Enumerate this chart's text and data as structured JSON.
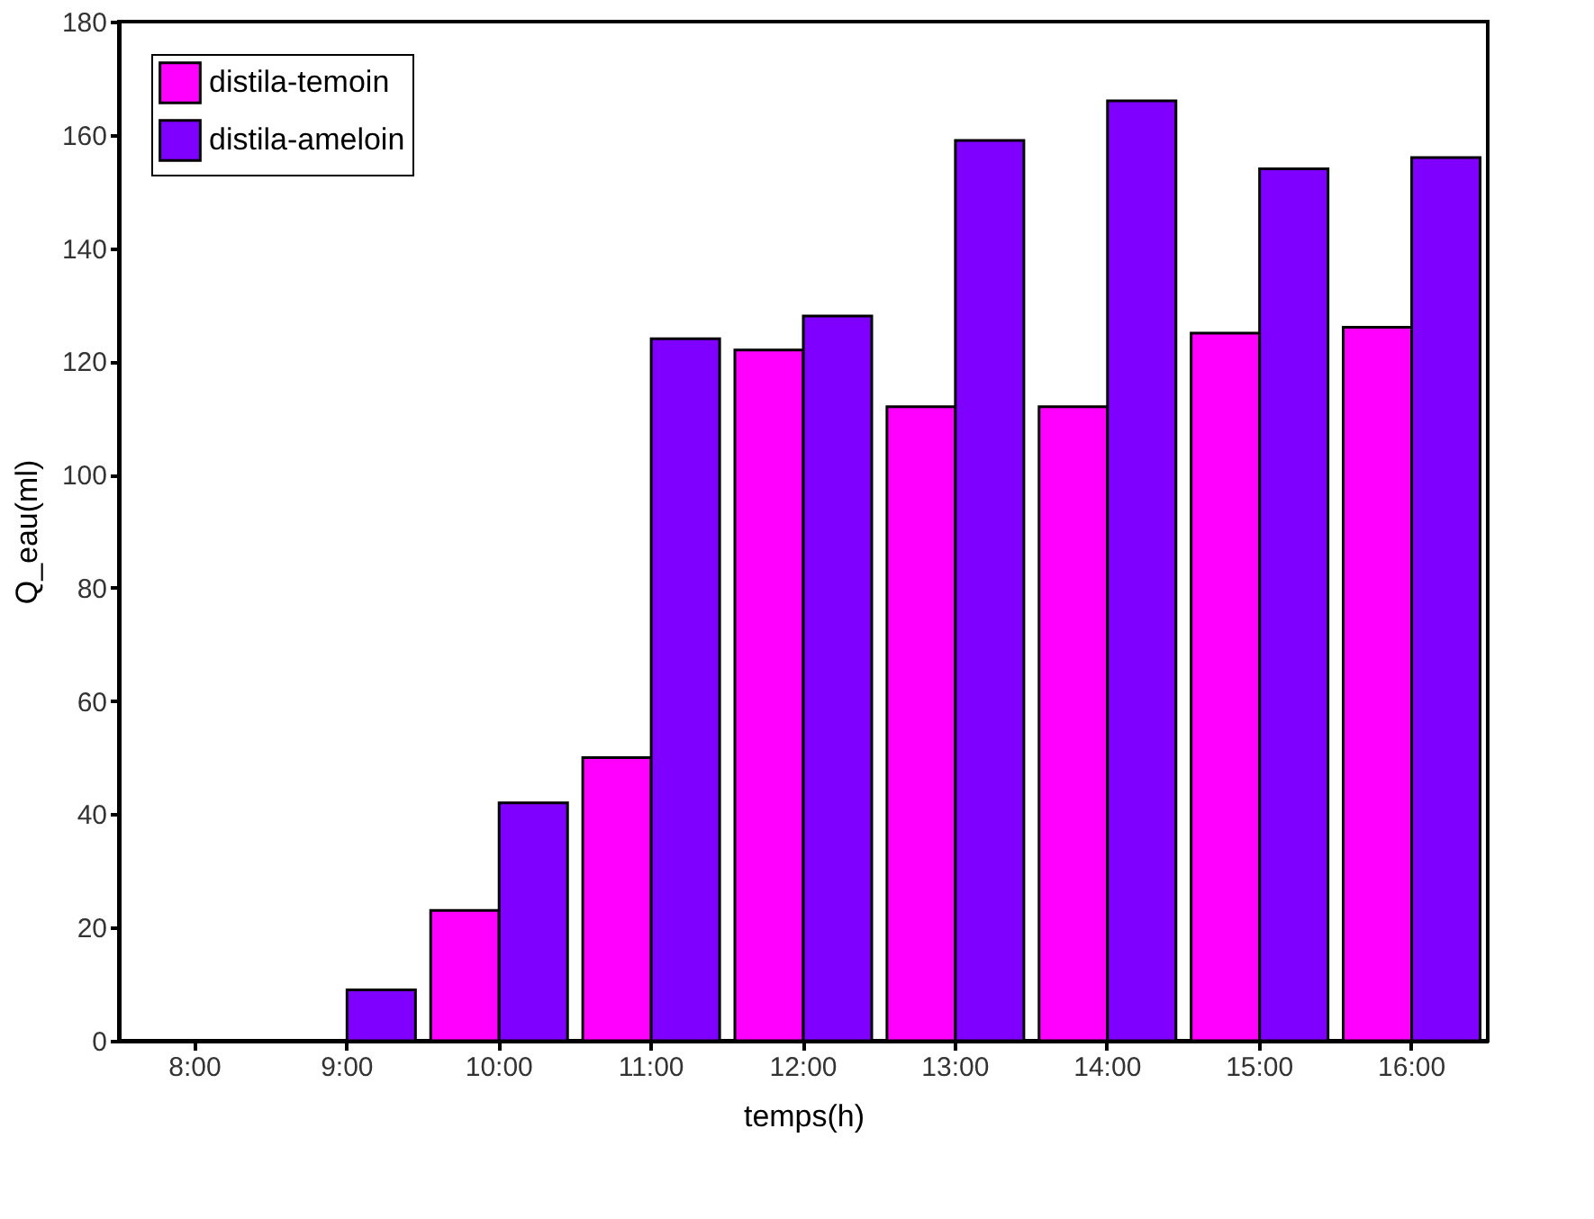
{
  "chart_data": {
    "type": "bar",
    "xlabel": "temps(h)",
    "ylabel": "Q_eau(ml)",
    "categories": [
      "8:00",
      "9:00",
      "10:00",
      "11:00",
      "12:00",
      "13:00",
      "14:00",
      "15:00",
      "16:00"
    ],
    "series": [
      {
        "name": "distila-temoin",
        "color": "#ff00ff",
        "values": [
          0,
          0,
          23,
          50,
          122,
          112,
          112,
          125,
          126
        ]
      },
      {
        "name": "distila-ameloin",
        "color": "#8000ff",
        "values": [
          0,
          9,
          42,
          124,
          128,
          159,
          166,
          154,
          156
        ]
      }
    ],
    "ylim": [
      0,
      180
    ],
    "yticks": [
      0,
      20,
      40,
      60,
      80,
      100,
      120,
      140,
      160,
      180
    ],
    "grid": false,
    "legend": "top left"
  }
}
